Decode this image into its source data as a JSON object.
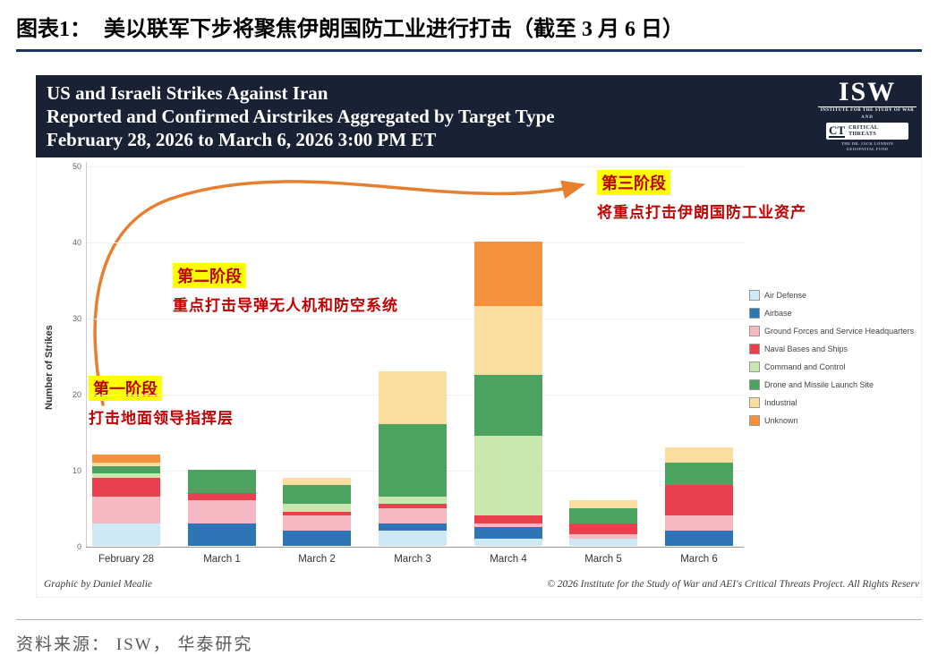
{
  "page": {
    "figure_label": "图表1：",
    "figure_title": "美以联军下步将聚焦伊朗国防工业进行打击（截至 3 月 6 日）",
    "source_line": "资料来源： ISW， 华泰研究"
  },
  "chart_header": {
    "line1": "US and Israeli Strikes Against Iran",
    "line2": "Reported and Confirmed Airstrikes Aggregated by Target Type",
    "line3": "February 28, 2026 to March 6, 2026 3:00 PM ET",
    "isw_text": "ISW",
    "isw_subtext": "INSTITUTE FOR THE STUDY OF WAR",
    "and_text": "AND",
    "ct_text": "CT",
    "ct_label1": "CRITICAL",
    "ct_label2": "THREATS",
    "ct_sub1": "THE DR. JACK LONDON",
    "ct_sub2": "GEOSPATIAL FUND"
  },
  "annotations": {
    "phase1_title": "第一阶段",
    "phase1_text": "打击地面领导指挥层",
    "phase2_title": "第二阶段",
    "phase2_text": "重点打击导弹无人机和防空系统",
    "phase3_title": "第三阶段",
    "phase3_text": "将重点打击伊朗国防工业资产",
    "highlight_color": "#ffff00",
    "text_color": "#c00000",
    "arrow_color": "#e87f2f"
  },
  "chart_footer": {
    "credit": "Graphic by Daniel Mealie",
    "copyright": "© 2026 Institute for the Study of War and AEI's Critical Threats Project. All Rights Reserv"
  },
  "chart_data": {
    "type": "bar",
    "stacked": true,
    "title": "US and Israeli Strikes Against Iran — Reported and Confirmed Airstrikes Aggregated by Target Type, February 28, 2026 to March 6, 2026 3:00 PM ET",
    "xlabel": "",
    "ylabel": "Number of Strikes",
    "ylim": [
      0,
      50
    ],
    "yticks": [
      0,
      10,
      20,
      30,
      40,
      50
    ],
    "grid": true,
    "legend_position": "right",
    "categories": [
      "February 28",
      "March 1",
      "March 2",
      "March 3",
      "March 4",
      "March 5",
      "March 6"
    ],
    "series": [
      {
        "name": "Air Defense",
        "color": "#cfe8f5",
        "values": [
          3,
          0,
          0,
          2,
          1,
          1,
          0
        ]
      },
      {
        "name": "Airbase",
        "color": "#2e75b6",
        "values": [
          0,
          3,
          2,
          1,
          1.5,
          0,
          2
        ]
      },
      {
        "name": "Ground Forces and Service Headquarters",
        "color": "#f6b8c1",
        "values": [
          3.5,
          3,
          2,
          2,
          0.5,
          0.5,
          2
        ]
      },
      {
        "name": "Naval Bases and Ships",
        "color": "#e8414d",
        "values": [
          2.5,
          1,
          0.5,
          0.5,
          1,
          1.5,
          4
        ]
      },
      {
        "name": "Command and Control",
        "color": "#c9e7ad",
        "values": [
          0.5,
          0,
          1,
          1,
          10.5,
          0,
          0
        ]
      },
      {
        "name": "Drone and Missile Launch Site",
        "color": "#4ca35f",
        "values": [
          1,
          3,
          2.5,
          9.5,
          8,
          2,
          3
        ]
      },
      {
        "name": "Industrial",
        "color": "#fbdda0",
        "values": [
          0.5,
          0,
          1,
          7,
          9,
          1,
          2
        ]
      },
      {
        "name": "Unknown",
        "color": "#f5903d",
        "values": [
          1,
          0,
          0,
          0,
          8.5,
          0,
          0
        ]
      }
    ],
    "totals": [
      12,
      10,
      9,
      23,
      40,
      6,
      13
    ]
  }
}
